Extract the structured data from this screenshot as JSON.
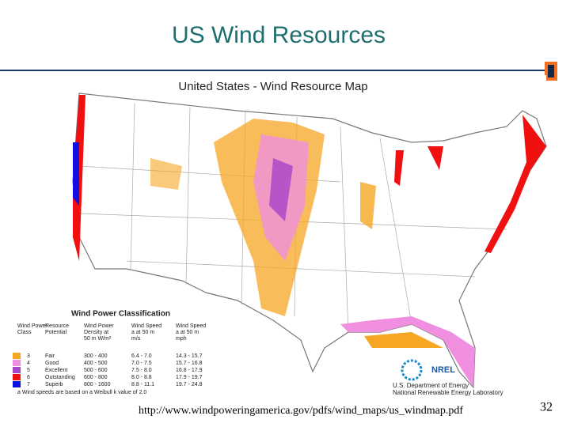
{
  "slide": {
    "title": "US Wind Resources",
    "page_number": "32",
    "source_url": "http://www.windpoweringamerica.gov/pdfs/wind_maps/us_windmap.pdf"
  },
  "map": {
    "title": "United States - Wind Resource Map",
    "agency": [
      "U.S. Department of Energy",
      "National Renewable Energy Laboratory"
    ],
    "logo_text": "NREL"
  },
  "legend": {
    "title": "Wind Power Classification",
    "headers": [
      "Wind Power Class",
      "Resource Potential",
      "Wind Power Density at 50 m W/m²",
      "Wind Speed a at 50 m m/s",
      "Wind Speed a at 50 m mph"
    ],
    "rows": [
      [
        "3",
        "Fair",
        "300 - 400",
        "6.4 - 7.0",
        "14.3 - 15.7"
      ],
      [
        "4",
        "Good",
        "400 - 500",
        "7.0 - 7.5",
        "15.7 - 16.8"
      ],
      [
        "5",
        "Excellent",
        "500 - 600",
        "7.5 - 8.0",
        "16.8 - 17.9"
      ],
      [
        "6",
        "Outstanding",
        "600 - 800",
        "8.0 - 8.8",
        "17.9 - 19.7"
      ],
      [
        "7",
        "Superb",
        "800 - 1600",
        "8.8 - 11.1",
        "19.7 - 24.8"
      ]
    ],
    "colors": [
      "#f5a623",
      "#f08ee0",
      "#a845c8",
      "#f01010",
      "#1010e0"
    ],
    "footnote": "a Wind speeds are based on a Weibull k value of 2.0"
  }
}
